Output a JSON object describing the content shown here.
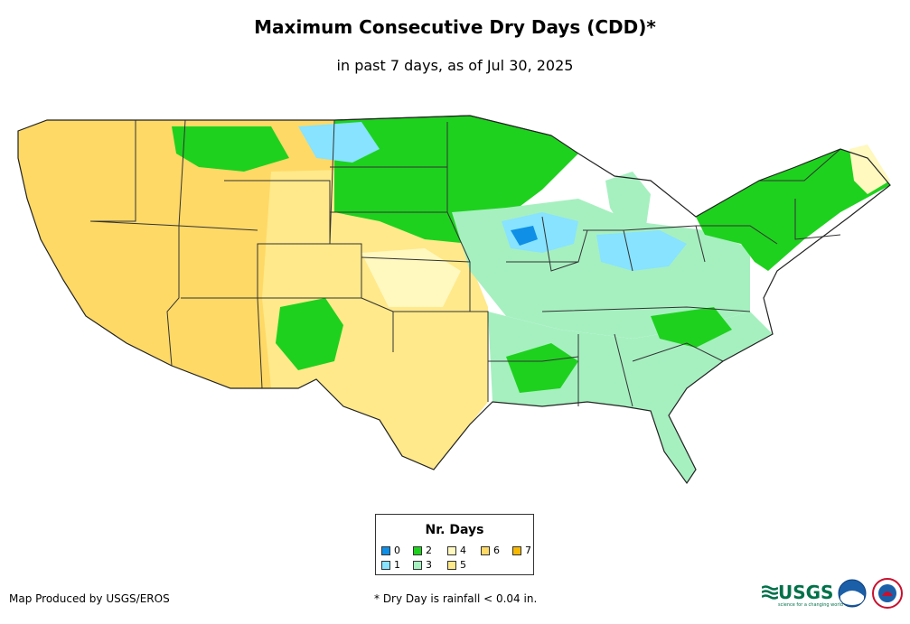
{
  "title": "Maximum Consecutive Dry Days (CDD)*",
  "subtitle": "in past 7 days, as of Jul 30, 2025",
  "legend": {
    "title": "Nr. Days",
    "items": [
      {
        "label": "0",
        "color": "#0f8fe6"
      },
      {
        "label": "1",
        "color": "#87e3ff"
      },
      {
        "label": "2",
        "color": "#1ed11e"
      },
      {
        "label": "3",
        "color": "#a6f0c0"
      },
      {
        "label": "4",
        "color": "#fff8bf"
      },
      {
        "label": "5",
        "color": "#ffe98a"
      },
      {
        "label": "6",
        "color": "#ffd966"
      },
      {
        "label": "7",
        "color": "#f7b800"
      }
    ]
  },
  "credit": "Map Produced by USGS/EROS",
  "footnote": "* Dry Day is rainfall < 0.04 in.",
  "logos": {
    "usgs": "USGS",
    "usgs_tagline": "science for a changing world",
    "noaa": "NOAA",
    "nws": "NWS"
  }
}
